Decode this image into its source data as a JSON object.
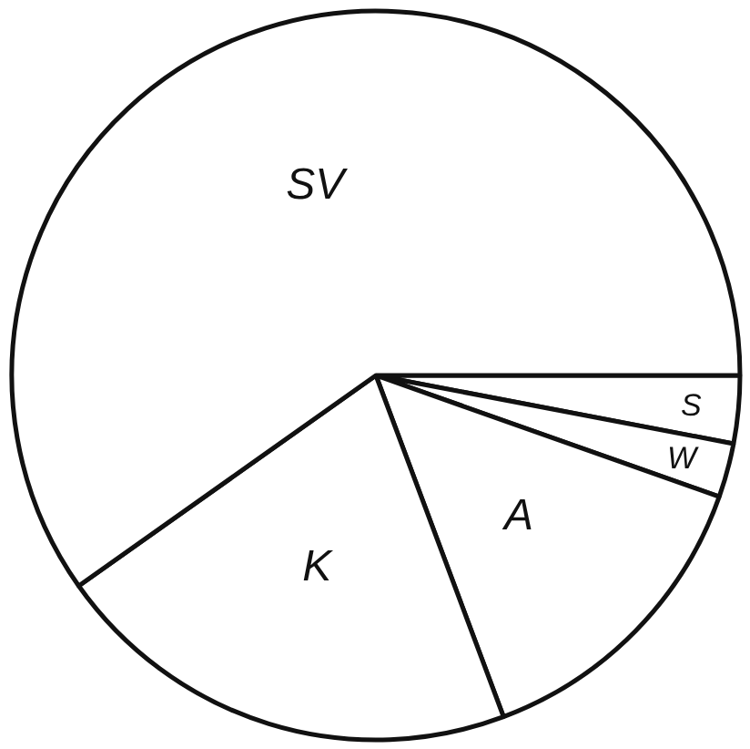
{
  "chart_data": {
    "type": "pie",
    "categories": [
      "S",
      "W",
      "A",
      "K",
      "SV"
    ],
    "values": [
      3.0,
      2.4,
      13.9,
      20.9,
      59.8
    ],
    "colors": [
      "#ffffff",
      "#ffffff",
      "#ffffff",
      "#ffffff",
      "#ffffff"
    ]
  }
}
